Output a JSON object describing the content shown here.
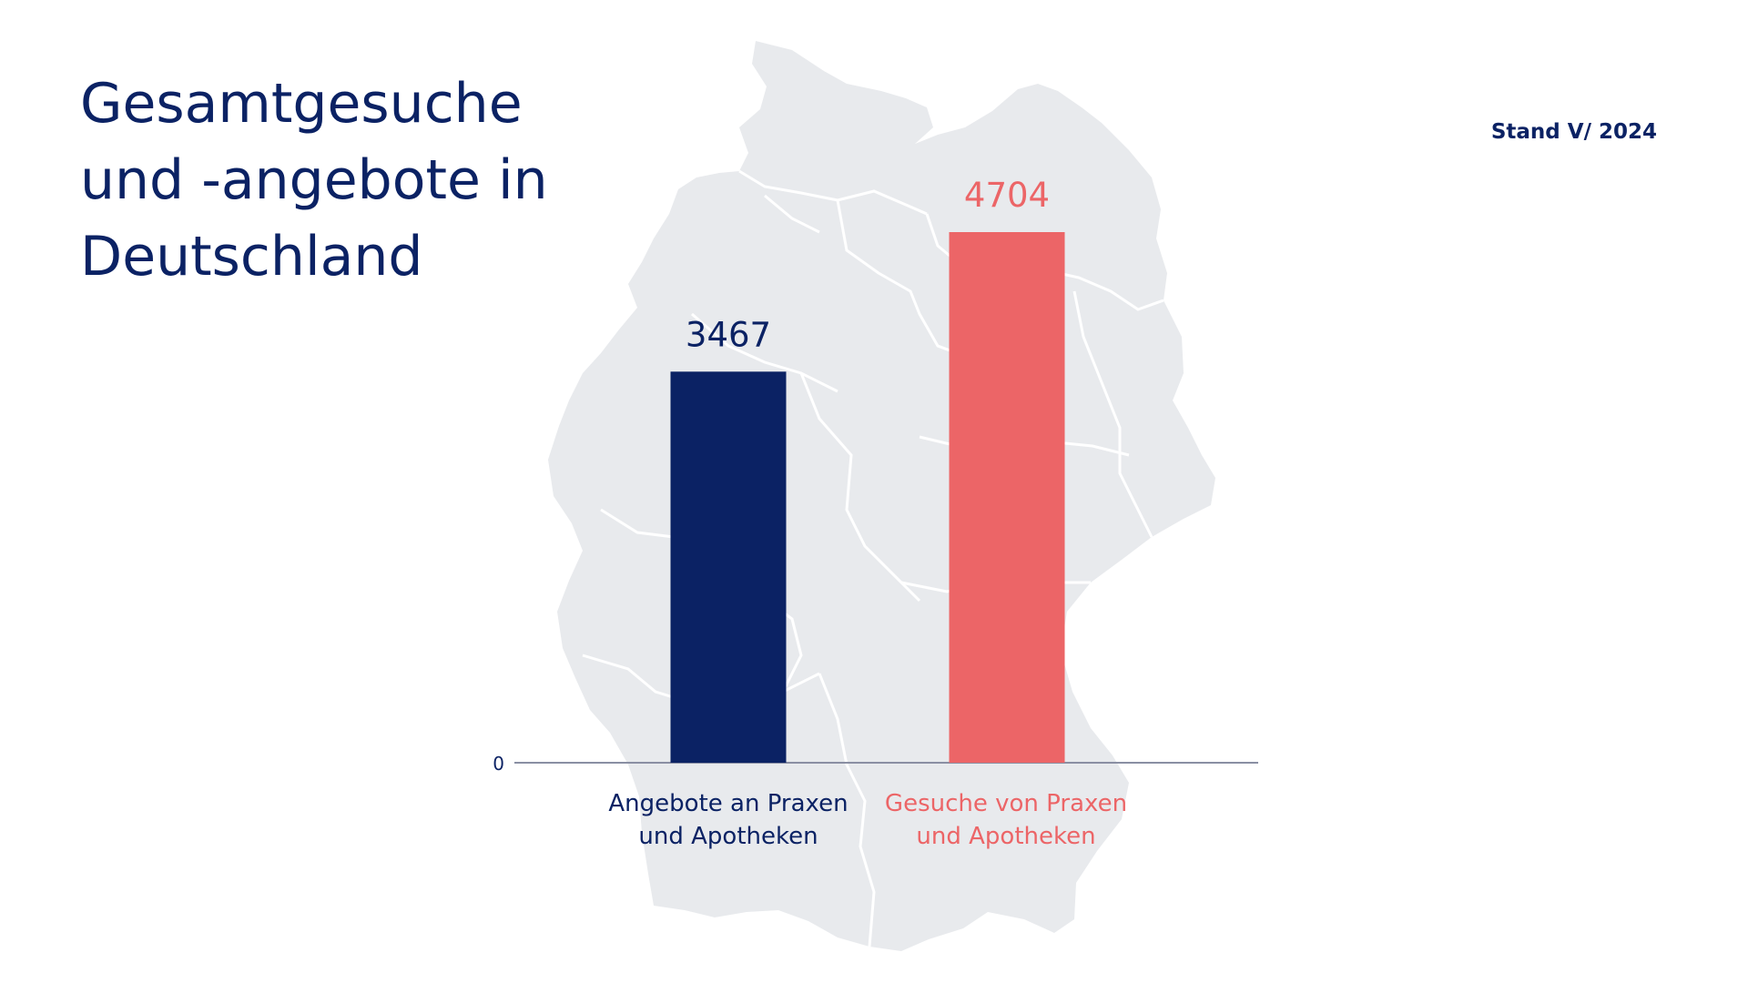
{
  "header": {
    "title_lines": [
      "Gesamtgesuche",
      "und -angebote in",
      "Deutschland"
    ],
    "stand": "Stand V/ 2024"
  },
  "colors": {
    "navy": "#0b2264",
    "coral": "#ec6567",
    "map_fill": "#e8eaed",
    "axis": "#8a8fa3"
  },
  "chart_data": {
    "type": "bar",
    "categories": [
      "Angebote an Praxen und Apotheken",
      "Gesuche von Praxen und Apotheken"
    ],
    "category_lines": [
      [
        "Angebote an Praxen",
        "und Apotheken"
      ],
      [
        "Gesuche von Praxen",
        "und Apotheken"
      ]
    ],
    "values": [
      3467,
      4704
    ],
    "value_labels": [
      "3467",
      "4704"
    ],
    "bar_colors": [
      "#0b2264",
      "#ec6567"
    ],
    "title": "Gesamtgesuche und -angebote in Deutschland",
    "xlabel": "",
    "ylabel": "",
    "y_tick_labels": [
      "0"
    ],
    "ylim": [
      0,
      4704
    ],
    "grid": false,
    "legend": "none"
  }
}
